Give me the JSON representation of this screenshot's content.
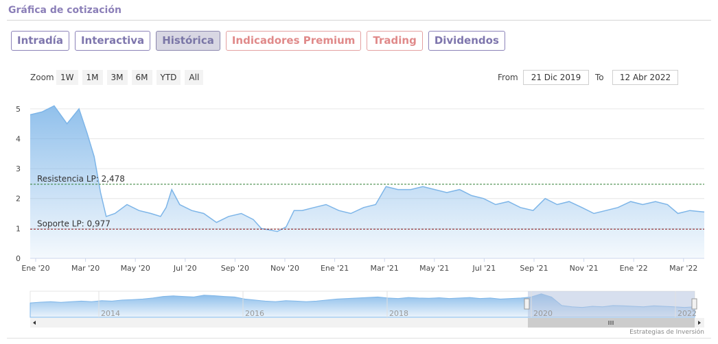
{
  "header": {
    "title": "Gráfica de cotización"
  },
  "tabs": [
    {
      "label": "Intradía",
      "state": "normal"
    },
    {
      "label": "Interactiva",
      "state": "normal"
    },
    {
      "label": "Histórica",
      "state": "active"
    },
    {
      "label": "Indicadores Premium",
      "state": "premium"
    },
    {
      "label": "Trading",
      "state": "premium"
    },
    {
      "label": "Dividendos",
      "state": "normal"
    }
  ],
  "range_selector": {
    "zoom_label": "Zoom",
    "buttons": [
      "1W",
      "1M",
      "3M",
      "6M",
      "YTD",
      "All"
    ],
    "from_label": "From",
    "from_value": "21 Dic 2019",
    "to_label": "To",
    "to_value": "12 Abr 2022"
  },
  "colors": {
    "accent": "#8b7fb8",
    "premium": "#e08a8a",
    "series": "#7db5e8",
    "resistance": "#2e7d32",
    "support": "#8b1a1a"
  },
  "chart_data": {
    "type": "area",
    "x_tick_labels": [
      "Ene '20",
      "Mar '20",
      "May '20",
      "Jul '20",
      "Sep '20",
      "Nov '20",
      "Ene '21",
      "Mar '21",
      "May '21",
      "Jul '21",
      "Sep '21",
      "Nov '21",
      "Ene '22",
      "Mar '22"
    ],
    "y_tick_labels": [
      "0",
      "1",
      "2",
      "3",
      "4",
      "5"
    ],
    "ylim": [
      0,
      5.5
    ],
    "x": [
      "2019-12-21",
      "2020-01-05",
      "2020-01-20",
      "2020-02-05",
      "2020-02-20",
      "2020-03-01",
      "2020-03-10",
      "2020-03-18",
      "2020-03-25",
      "2020-04-05",
      "2020-04-20",
      "2020-05-05",
      "2020-05-20",
      "2020-06-01",
      "2020-06-08",
      "2020-06-15",
      "2020-06-25",
      "2020-07-10",
      "2020-07-25",
      "2020-08-10",
      "2020-08-25",
      "2020-09-10",
      "2020-09-25",
      "2020-10-05",
      "2020-10-15",
      "2020-10-25",
      "2020-11-05",
      "2020-11-15",
      "2020-11-25",
      "2020-12-10",
      "2020-12-25",
      "2021-01-10",
      "2021-01-25",
      "2021-02-10",
      "2021-02-25",
      "2021-03-10",
      "2021-03-25",
      "2021-04-10",
      "2021-04-25",
      "2021-05-10",
      "2021-05-25",
      "2021-06-10",
      "2021-06-25",
      "2021-07-10",
      "2021-07-25",
      "2021-08-10",
      "2021-08-25",
      "2021-09-10",
      "2021-09-25",
      "2021-10-10",
      "2021-10-25",
      "2021-11-10",
      "2021-11-25",
      "2021-12-10",
      "2021-12-25",
      "2022-01-10",
      "2022-01-25",
      "2022-02-10",
      "2022-02-25",
      "2022-03-10",
      "2022-03-25",
      "2022-04-12"
    ],
    "y": [
      4.8,
      4.9,
      5.1,
      4.5,
      5.0,
      4.2,
      3.4,
      2.2,
      1.4,
      1.5,
      1.8,
      1.6,
      1.5,
      1.4,
      1.7,
      2.3,
      1.8,
      1.6,
      1.5,
      1.2,
      1.4,
      1.5,
      1.3,
      1.0,
      0.95,
      0.9,
      1.05,
      1.6,
      1.6,
      1.7,
      1.8,
      1.6,
      1.5,
      1.7,
      1.8,
      2.4,
      2.3,
      2.3,
      2.4,
      2.3,
      2.2,
      2.3,
      2.1,
      2.0,
      1.8,
      1.9,
      1.7,
      1.6,
      2.0,
      1.8,
      1.9,
      1.7,
      1.5,
      1.6,
      1.7,
      1.9,
      1.8,
      1.9,
      1.8,
      1.5,
      1.6,
      1.55
    ],
    "reference_lines": [
      {
        "label": "Resistencia LP: 2,478",
        "value": 2.478
      },
      {
        "label": "Soporte LP: 0,977",
        "value": 0.977
      }
    ],
    "navigator": {
      "x_tick_labels": [
        "2014",
        "2016",
        "2018",
        "2020",
        "2022"
      ],
      "selected_start": "2019-12-21",
      "selected_end": "2022-04-12"
    },
    "grid": true
  },
  "credit": "Estrategias de Inversión"
}
